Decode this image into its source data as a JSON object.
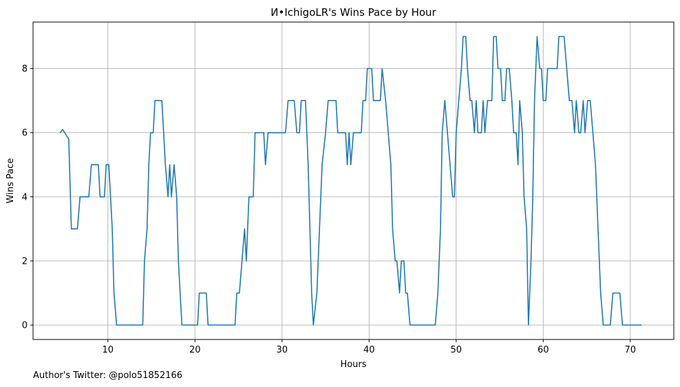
{
  "chart_data": {
    "type": "line",
    "title": "И•IchigoLR's Wins Pace by Hour",
    "xlabel": "Hours",
    "ylabel": "Wins Pace",
    "xlim": [
      1.4,
      75.0
    ],
    "ylim": [
      -0.45,
      9.45
    ],
    "xticks": [
      10,
      20,
      30,
      40,
      50,
      60,
      70
    ],
    "yticks": [
      0,
      2,
      4,
      6,
      8
    ],
    "grid": true,
    "legend": "none",
    "series": [
      {
        "color": "#1f77b4",
        "points": [
          [
            4.5,
            6.0
          ],
          [
            4.8,
            6.1
          ],
          [
            5.5,
            5.8
          ],
          [
            5.8,
            3.0
          ],
          [
            6.5,
            3.0
          ],
          [
            6.8,
            4.0
          ],
          [
            7.8,
            4.0
          ],
          [
            8.1,
            5.0
          ],
          [
            8.9,
            5.0
          ],
          [
            9.1,
            4.0
          ],
          [
            9.6,
            4.0
          ],
          [
            9.8,
            5.0
          ],
          [
            10.1,
            5.0
          ],
          [
            10.5,
            3.0
          ],
          [
            10.7,
            1.0
          ],
          [
            11.0,
            0.0
          ],
          [
            14.0,
            0.0
          ],
          [
            14.2,
            2.0
          ],
          [
            14.5,
            3.0
          ],
          [
            14.7,
            5.0
          ],
          [
            14.9,
            6.0
          ],
          [
            15.2,
            6.0
          ],
          [
            15.4,
            7.0
          ],
          [
            16.2,
            7.0
          ],
          [
            16.6,
            5.0
          ],
          [
            16.9,
            4.0
          ],
          [
            17.1,
            5.0
          ],
          [
            17.3,
            4.0
          ],
          [
            17.6,
            5.0
          ],
          [
            17.9,
            4.0
          ],
          [
            18.1,
            2.0
          ],
          [
            18.5,
            0.0
          ],
          [
            20.3,
            0.0
          ],
          [
            20.5,
            1.0
          ],
          [
            21.3,
            1.0
          ],
          [
            21.5,
            0.0
          ],
          [
            24.6,
            0.0
          ],
          [
            24.8,
            1.0
          ],
          [
            25.1,
            1.0
          ],
          [
            25.4,
            2.0
          ],
          [
            25.7,
            3.0
          ],
          [
            25.9,
            2.0
          ],
          [
            26.2,
            4.0
          ],
          [
            26.7,
            4.0
          ],
          [
            26.9,
            6.0
          ],
          [
            27.9,
            6.0
          ],
          [
            28.1,
            5.0
          ],
          [
            28.4,
            6.0
          ],
          [
            30.4,
            6.0
          ],
          [
            30.7,
            7.0
          ],
          [
            31.4,
            7.0
          ],
          [
            31.7,
            6.0
          ],
          [
            32.0,
            6.0
          ],
          [
            32.2,
            7.0
          ],
          [
            32.7,
            7.0
          ],
          [
            33.0,
            5.0
          ],
          [
            33.2,
            3.0
          ],
          [
            33.4,
            1.0
          ],
          [
            33.6,
            0.0
          ],
          [
            34.0,
            1.0
          ],
          [
            34.3,
            3.0
          ],
          [
            34.6,
            5.0
          ],
          [
            35.0,
            6.0
          ],
          [
            35.3,
            7.0
          ],
          [
            36.2,
            7.0
          ],
          [
            36.4,
            6.0
          ],
          [
            37.3,
            6.0
          ],
          [
            37.5,
            5.0
          ],
          [
            37.7,
            6.0
          ],
          [
            37.9,
            5.0
          ],
          [
            38.2,
            6.0
          ],
          [
            39.1,
            6.0
          ],
          [
            39.3,
            7.0
          ],
          [
            39.6,
            7.0
          ],
          [
            39.8,
            8.0
          ],
          [
            40.3,
            8.0
          ],
          [
            40.5,
            7.0
          ],
          [
            41.3,
            7.0
          ],
          [
            41.5,
            8.0
          ],
          [
            41.9,
            7.0
          ],
          [
            42.2,
            6.0
          ],
          [
            42.5,
            5.0
          ],
          [
            42.7,
            3.0
          ],
          [
            43.0,
            2.0
          ],
          [
            43.2,
            2.0
          ],
          [
            43.5,
            1.0
          ],
          [
            43.7,
            2.0
          ],
          [
            44.0,
            2.0
          ],
          [
            44.2,
            1.0
          ],
          [
            44.4,
            1.0
          ],
          [
            44.7,
            0.0
          ],
          [
            47.6,
            0.0
          ],
          [
            47.9,
            1.0
          ],
          [
            48.2,
            3.0
          ],
          [
            48.4,
            6.0
          ],
          [
            48.7,
            7.0
          ],
          [
            49.0,
            6.0
          ],
          [
            49.3,
            5.0
          ],
          [
            49.6,
            4.0
          ],
          [
            49.8,
            4.0
          ],
          [
            50.0,
            6.0
          ],
          [
            50.3,
            7.0
          ],
          [
            50.6,
            8.0
          ],
          [
            50.8,
            9.0
          ],
          [
            51.1,
            9.0
          ],
          [
            51.3,
            8.0
          ],
          [
            51.6,
            7.0
          ],
          [
            51.8,
            7.0
          ],
          [
            52.1,
            6.0
          ],
          [
            52.3,
            7.0
          ],
          [
            52.5,
            6.0
          ],
          [
            52.9,
            6.0
          ],
          [
            53.1,
            7.0
          ],
          [
            53.3,
            6.0
          ],
          [
            53.6,
            7.0
          ],
          [
            54.1,
            7.0
          ],
          [
            54.3,
            9.0
          ],
          [
            54.6,
            9.0
          ],
          [
            54.8,
            8.0
          ],
          [
            55.1,
            8.0
          ],
          [
            55.3,
            7.0
          ],
          [
            55.6,
            7.0
          ],
          [
            55.8,
            8.0
          ],
          [
            56.1,
            8.0
          ],
          [
            56.4,
            7.0
          ],
          [
            56.6,
            6.0
          ],
          [
            56.9,
            6.0
          ],
          [
            57.1,
            5.0
          ],
          [
            57.3,
            7.0
          ],
          [
            57.6,
            6.0
          ],
          [
            57.8,
            4.0
          ],
          [
            58.1,
            3.0
          ],
          [
            58.3,
            0.0
          ],
          [
            58.6,
            2.0
          ],
          [
            58.8,
            4.0
          ],
          [
            59.0,
            7.0
          ],
          [
            59.3,
            9.0
          ],
          [
            59.6,
            8.0
          ],
          [
            59.8,
            8.0
          ],
          [
            60.0,
            7.0
          ],
          [
            60.3,
            7.0
          ],
          [
            60.5,
            8.0
          ],
          [
            61.6,
            8.0
          ],
          [
            61.8,
            9.0
          ],
          [
            62.4,
            9.0
          ],
          [
            62.7,
            8.0
          ],
          [
            63.0,
            7.0
          ],
          [
            63.3,
            7.0
          ],
          [
            63.6,
            6.0
          ],
          [
            63.8,
            7.0
          ],
          [
            64.1,
            6.0
          ],
          [
            64.3,
            6.0
          ],
          [
            64.6,
            7.0
          ],
          [
            64.8,
            6.0
          ],
          [
            65.1,
            7.0
          ],
          [
            65.4,
            7.0
          ],
          [
            65.7,
            6.0
          ],
          [
            66.0,
            5.0
          ],
          [
            66.3,
            3.0
          ],
          [
            66.6,
            1.0
          ],
          [
            66.9,
            0.0
          ],
          [
            67.7,
            0.0
          ],
          [
            68.0,
            1.0
          ],
          [
            68.8,
            1.0
          ],
          [
            69.1,
            0.0
          ],
          [
            71.3,
            0.0
          ]
        ]
      }
    ]
  },
  "footer": {
    "author_text": "Author's Twitter: @polo51852166"
  }
}
